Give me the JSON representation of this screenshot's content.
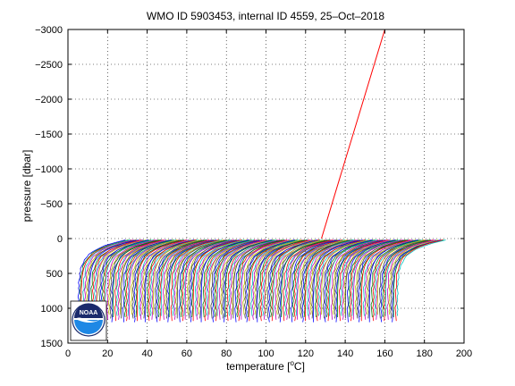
{
  "chart_data": {
    "type": "line",
    "title": "WMO ID 5903453, internal ID 4559, 25–Oct–2018",
    "xlabel_main": "temperature [",
    "xlabel_degree": "o",
    "xlabel_unit": "C]",
    "ylabel": "pressure [dbar]",
    "xlim": [
      0,
      200
    ],
    "ylim": [
      1500,
      -3000
    ],
    "y_axis_reversed": true,
    "grid": true,
    "grid_style": "dotted",
    "x_ticks": [
      0,
      20,
      40,
      60,
      80,
      100,
      120,
      140,
      160,
      180,
      200
    ],
    "x_tick_labels": [
      "0",
      "20",
      "40",
      "60",
      "80",
      "100",
      "120",
      "140",
      "160",
      "180",
      "200"
    ],
    "y_ticks": [
      -3000,
      -2500,
      -2000,
      -1500,
      -1000,
      -500,
      0,
      500,
      1000,
      1500
    ],
    "y_tick_labels": [
      "−3000",
      "−2500",
      "−2000",
      "−1500",
      "−1000",
      "−500",
      "0",
      "500",
      "1000",
      "1500"
    ],
    "profile_family": {
      "description_count": 200,
      "first_profile_deep_temperature": 5,
      "last_profile_deep_temperature": 166,
      "temperature_offset_at_surface": 24,
      "surface_pressure": 20,
      "max_pressure": 1200,
      "colors": [
        "#0000ff",
        "#008000",
        "#ff0000",
        "#00bfbf",
        "#bf00bf",
        "#bfbf00",
        "#404040"
      ]
    },
    "outlier_series": {
      "color": "#ff0000",
      "x": [
        128,
        160
      ],
      "y": [
        0,
        -3000
      ]
    }
  },
  "logo": {
    "text": "NOAA",
    "colors": {
      "outer": "#ffffff",
      "upper": "#1a2a6c",
      "lower": "#1e88e5",
      "bird": "#ffffff"
    }
  }
}
